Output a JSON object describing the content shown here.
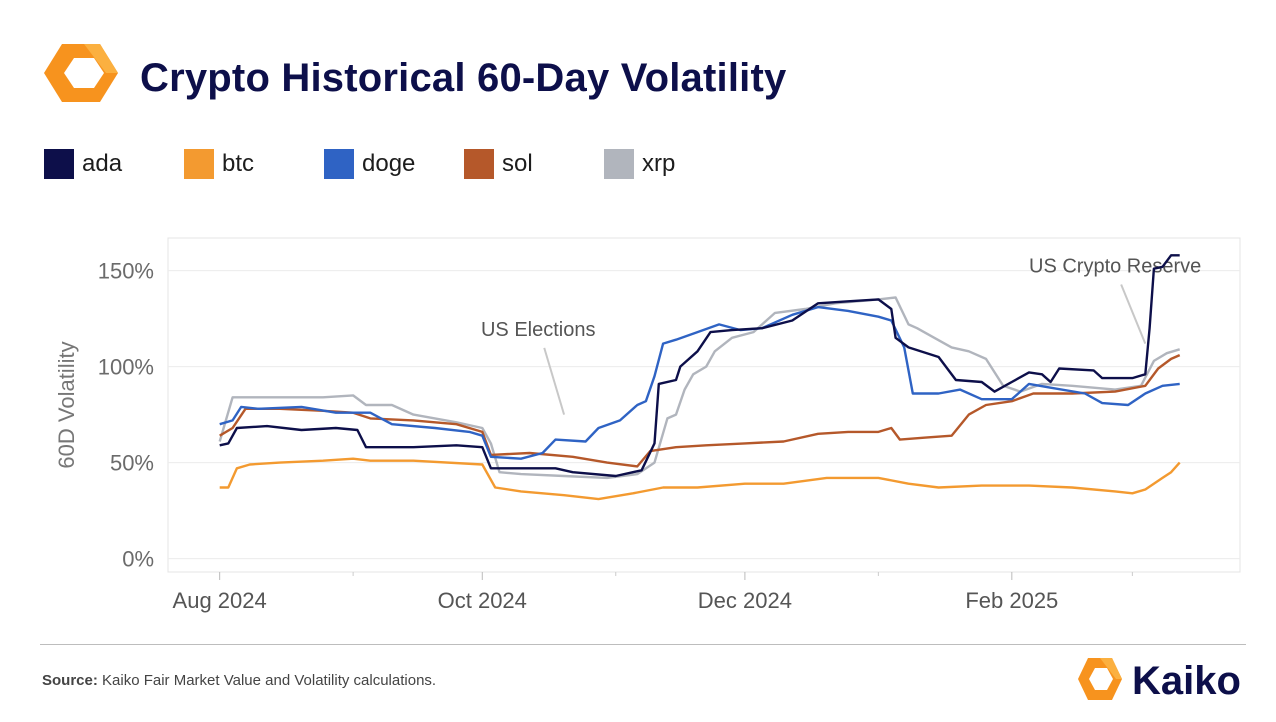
{
  "title": "Crypto Historical 60-Day Volatility",
  "colors": {
    "ada": "#0d0f4a",
    "btc": "#f39a30",
    "doge": "#2f63c4",
    "sol": "#b5582a",
    "xrp": "#b1b5bd",
    "accent": "#f7931e"
  },
  "legend": [
    {
      "key": "ada",
      "label": "ada"
    },
    {
      "key": "btc",
      "label": "btc"
    },
    {
      "key": "doge",
      "label": "doge"
    },
    {
      "key": "sol",
      "label": "sol"
    },
    {
      "key": "xrp",
      "label": "xrp"
    }
  ],
  "source": {
    "label": "Source:",
    "text": " Kaiko Fair Market Value and Volatility calculations."
  },
  "brand": {
    "name": "Kaiko"
  },
  "chart_data": {
    "type": "line",
    "title": "Crypto Historical 60-Day Volatility",
    "xlabel": "",
    "ylabel": "60D Volatility",
    "ylim": [
      -7,
      167
    ],
    "yticks": [
      {
        "v": 0,
        "label": "0%"
      },
      {
        "v": 50,
        "label": "50%"
      },
      {
        "v": 100,
        "label": "100%"
      },
      {
        "v": 150,
        "label": "150%"
      }
    ],
    "xlim": [
      "2024-07-20",
      "2025-03-26"
    ],
    "xticks": [
      {
        "date": "2024-08-01",
        "label": "Aug 2024"
      },
      {
        "date": "2024-10-01",
        "label": "Oct 2024"
      },
      {
        "date": "2024-12-01",
        "label": "Dec 2024"
      },
      {
        "date": "2025-02-01",
        "label": "Feb 2025"
      }
    ],
    "minor_ticks": [
      "2024-09-01",
      "2024-11-01",
      "2025-01-01",
      "2025-03-01"
    ],
    "annotations": [
      {
        "text": "US Elections",
        "date": "2024-10-14",
        "value": 116,
        "arrow_to": {
          "date": "2024-10-20",
          "value": 75
        }
      },
      {
        "text": "US Crypto Reserve",
        "date": "2025-02-25",
        "value": 149,
        "arrow_to": {
          "date": "2025-03-04",
          "value": 112
        }
      }
    ],
    "series": [
      {
        "name": "ada",
        "points": [
          [
            "2024-08-01",
            59
          ],
          [
            "2024-08-03",
            60
          ],
          [
            "2024-08-05",
            68
          ],
          [
            "2024-08-12",
            69
          ],
          [
            "2024-08-20",
            67
          ],
          [
            "2024-08-28",
            68
          ],
          [
            "2024-09-02",
            67
          ],
          [
            "2024-09-04",
            58
          ],
          [
            "2024-09-15",
            58
          ],
          [
            "2024-09-25",
            59
          ],
          [
            "2024-10-01",
            58
          ],
          [
            "2024-10-03",
            47
          ],
          [
            "2024-10-18",
            47
          ],
          [
            "2024-10-22",
            45
          ],
          [
            "2024-11-01",
            43
          ],
          [
            "2024-11-07",
            46
          ],
          [
            "2024-11-10",
            60
          ],
          [
            "2024-11-11",
            91
          ],
          [
            "2024-11-15",
            93
          ],
          [
            "2024-11-16",
            100
          ],
          [
            "2024-11-20",
            108
          ],
          [
            "2024-11-23",
            118
          ],
          [
            "2024-11-28",
            119
          ],
          [
            "2024-12-05",
            120
          ],
          [
            "2024-12-12",
            124
          ],
          [
            "2024-12-18",
            133
          ],
          [
            "2024-12-25",
            134
          ],
          [
            "2025-01-01",
            135
          ],
          [
            "2025-01-04",
            130
          ],
          [
            "2025-01-05",
            115
          ],
          [
            "2025-01-08",
            110
          ],
          [
            "2025-01-15",
            105
          ],
          [
            "2025-01-19",
            93
          ],
          [
            "2025-01-25",
            92
          ],
          [
            "2025-01-28",
            87
          ],
          [
            "2025-02-01",
            92
          ],
          [
            "2025-02-05",
            97
          ],
          [
            "2025-02-08",
            96
          ],
          [
            "2025-02-10",
            92
          ],
          [
            "2025-02-12",
            99
          ],
          [
            "2025-02-20",
            98
          ],
          [
            "2025-02-22",
            94
          ],
          [
            "2025-03-01",
            94
          ],
          [
            "2025-03-04",
            96
          ],
          [
            "2025-03-05",
            120
          ],
          [
            "2025-03-06",
            151
          ],
          [
            "2025-03-08",
            152
          ],
          [
            "2025-03-10",
            158
          ],
          [
            "2025-03-12",
            158
          ]
        ]
      },
      {
        "name": "btc",
        "points": [
          [
            "2024-08-01",
            37
          ],
          [
            "2024-08-03",
            37
          ],
          [
            "2024-08-05",
            47
          ],
          [
            "2024-08-08",
            49
          ],
          [
            "2024-08-15",
            50
          ],
          [
            "2024-08-25",
            51
          ],
          [
            "2024-09-01",
            52
          ],
          [
            "2024-09-05",
            51
          ],
          [
            "2024-09-15",
            51
          ],
          [
            "2024-10-01",
            49
          ],
          [
            "2024-10-04",
            37
          ],
          [
            "2024-10-10",
            35
          ],
          [
            "2024-10-20",
            33
          ],
          [
            "2024-10-28",
            31
          ],
          [
            "2024-11-05",
            34
          ],
          [
            "2024-11-12",
            37
          ],
          [
            "2024-11-20",
            37
          ],
          [
            "2024-12-01",
            39
          ],
          [
            "2024-12-10",
            39
          ],
          [
            "2024-12-20",
            42
          ],
          [
            "2025-01-01",
            42
          ],
          [
            "2025-01-08",
            39
          ],
          [
            "2025-01-15",
            37
          ],
          [
            "2025-01-25",
            38
          ],
          [
            "2025-02-05",
            38
          ],
          [
            "2025-02-15",
            37
          ],
          [
            "2025-02-25",
            35
          ],
          [
            "2025-03-01",
            34
          ],
          [
            "2025-03-04",
            36
          ],
          [
            "2025-03-08",
            42
          ],
          [
            "2025-03-10",
            45
          ],
          [
            "2025-03-12",
            50
          ]
        ]
      },
      {
        "name": "doge",
        "points": [
          [
            "2024-08-01",
            70
          ],
          [
            "2024-08-04",
            72
          ],
          [
            "2024-08-06",
            79
          ],
          [
            "2024-08-10",
            78
          ],
          [
            "2024-08-20",
            79
          ],
          [
            "2024-08-28",
            76
          ],
          [
            "2024-09-05",
            76
          ],
          [
            "2024-09-10",
            70
          ],
          [
            "2024-09-20",
            68
          ],
          [
            "2024-09-28",
            66
          ],
          [
            "2024-10-01",
            64
          ],
          [
            "2024-10-03",
            53
          ],
          [
            "2024-10-10",
            52
          ],
          [
            "2024-10-15",
            55
          ],
          [
            "2024-10-18",
            62
          ],
          [
            "2024-10-25",
            61
          ],
          [
            "2024-10-28",
            68
          ],
          [
            "2024-11-02",
            72
          ],
          [
            "2024-11-06",
            80
          ],
          [
            "2024-11-08",
            82
          ],
          [
            "2024-11-10",
            95
          ],
          [
            "2024-11-12",
            112
          ],
          [
            "2024-11-15",
            114
          ],
          [
            "2024-11-20",
            118
          ],
          [
            "2024-11-25",
            122
          ],
          [
            "2024-11-30",
            119
          ],
          [
            "2024-12-05",
            120
          ],
          [
            "2024-12-12",
            127
          ],
          [
            "2024-12-18",
            131
          ],
          [
            "2024-12-25",
            129
          ],
          [
            "2025-01-01",
            126
          ],
          [
            "2025-01-04",
            124
          ],
          [
            "2025-01-07",
            110
          ],
          [
            "2025-01-09",
            86
          ],
          [
            "2025-01-15",
            86
          ],
          [
            "2025-01-20",
            88
          ],
          [
            "2025-01-25",
            83
          ],
          [
            "2025-02-01",
            83
          ],
          [
            "2025-02-05",
            91
          ],
          [
            "2025-02-10",
            89
          ],
          [
            "2025-02-18",
            86
          ],
          [
            "2025-02-22",
            81
          ],
          [
            "2025-02-28",
            80
          ],
          [
            "2025-03-04",
            86
          ],
          [
            "2025-03-08",
            90
          ],
          [
            "2025-03-12",
            91
          ]
        ]
      },
      {
        "name": "sol",
        "points": [
          [
            "2024-08-01",
            64
          ],
          [
            "2024-08-04",
            68
          ],
          [
            "2024-08-07",
            78
          ],
          [
            "2024-08-15",
            78
          ],
          [
            "2024-08-25",
            77
          ],
          [
            "2024-09-01",
            76
          ],
          [
            "2024-09-05",
            73
          ],
          [
            "2024-09-15",
            72
          ],
          [
            "2024-09-25",
            70
          ],
          [
            "2024-10-01",
            66
          ],
          [
            "2024-10-03",
            54
          ],
          [
            "2024-10-12",
            55
          ],
          [
            "2024-10-22",
            53
          ],
          [
            "2024-10-30",
            50
          ],
          [
            "2024-11-06",
            48
          ],
          [
            "2024-11-09",
            56
          ],
          [
            "2024-11-15",
            58
          ],
          [
            "2024-11-22",
            59
          ],
          [
            "2024-12-01",
            60
          ],
          [
            "2024-12-10",
            61
          ],
          [
            "2024-12-18",
            65
          ],
          [
            "2024-12-25",
            66
          ],
          [
            "2025-01-01",
            66
          ],
          [
            "2025-01-04",
            68
          ],
          [
            "2025-01-06",
            62
          ],
          [
            "2025-01-12",
            63
          ],
          [
            "2025-01-18",
            64
          ],
          [
            "2025-01-22",
            75
          ],
          [
            "2025-01-26",
            80
          ],
          [
            "2025-02-01",
            82
          ],
          [
            "2025-02-06",
            86
          ],
          [
            "2025-02-15",
            86
          ],
          [
            "2025-02-25",
            87
          ],
          [
            "2025-03-04",
            90
          ],
          [
            "2025-03-07",
            99
          ],
          [
            "2025-03-10",
            104
          ],
          [
            "2025-03-12",
            106
          ]
        ]
      },
      {
        "name": "xrp",
        "points": [
          [
            "2024-08-01",
            61
          ],
          [
            "2024-08-04",
            84
          ],
          [
            "2024-08-12",
            84
          ],
          [
            "2024-08-25",
            84
          ],
          [
            "2024-09-01",
            85
          ],
          [
            "2024-09-04",
            80
          ],
          [
            "2024-09-10",
            80
          ],
          [
            "2024-09-15",
            75
          ],
          [
            "2024-09-25",
            71
          ],
          [
            "2024-10-01",
            68
          ],
          [
            "2024-10-03",
            60
          ],
          [
            "2024-10-05",
            45
          ],
          [
            "2024-10-10",
            44
          ],
          [
            "2024-10-20",
            43
          ],
          [
            "2024-10-30",
            42
          ],
          [
            "2024-11-06",
            44
          ],
          [
            "2024-11-10",
            50
          ],
          [
            "2024-11-13",
            73
          ],
          [
            "2024-11-15",
            75
          ],
          [
            "2024-11-17",
            88
          ],
          [
            "2024-11-19",
            96
          ],
          [
            "2024-11-22",
            100
          ],
          [
            "2024-11-24",
            108
          ],
          [
            "2024-11-28",
            115
          ],
          [
            "2024-12-03",
            118
          ],
          [
            "2024-12-08",
            128
          ],
          [
            "2024-12-15",
            130
          ],
          [
            "2024-12-22",
            133
          ],
          [
            "2025-01-01",
            135
          ],
          [
            "2025-01-05",
            136
          ],
          [
            "2025-01-08",
            122
          ],
          [
            "2025-01-10",
            120
          ],
          [
            "2025-01-14",
            115
          ],
          [
            "2025-01-18",
            110
          ],
          [
            "2025-01-22",
            108
          ],
          [
            "2025-01-26",
            104
          ],
          [
            "2025-01-30",
            90
          ],
          [
            "2025-02-03",
            87
          ],
          [
            "2025-02-08",
            91
          ],
          [
            "2025-02-15",
            90
          ],
          [
            "2025-02-25",
            88
          ],
          [
            "2025-03-03",
            90
          ],
          [
            "2025-03-06",
            103
          ],
          [
            "2025-03-09",
            107
          ],
          [
            "2025-03-12",
            109
          ]
        ]
      }
    ]
  }
}
